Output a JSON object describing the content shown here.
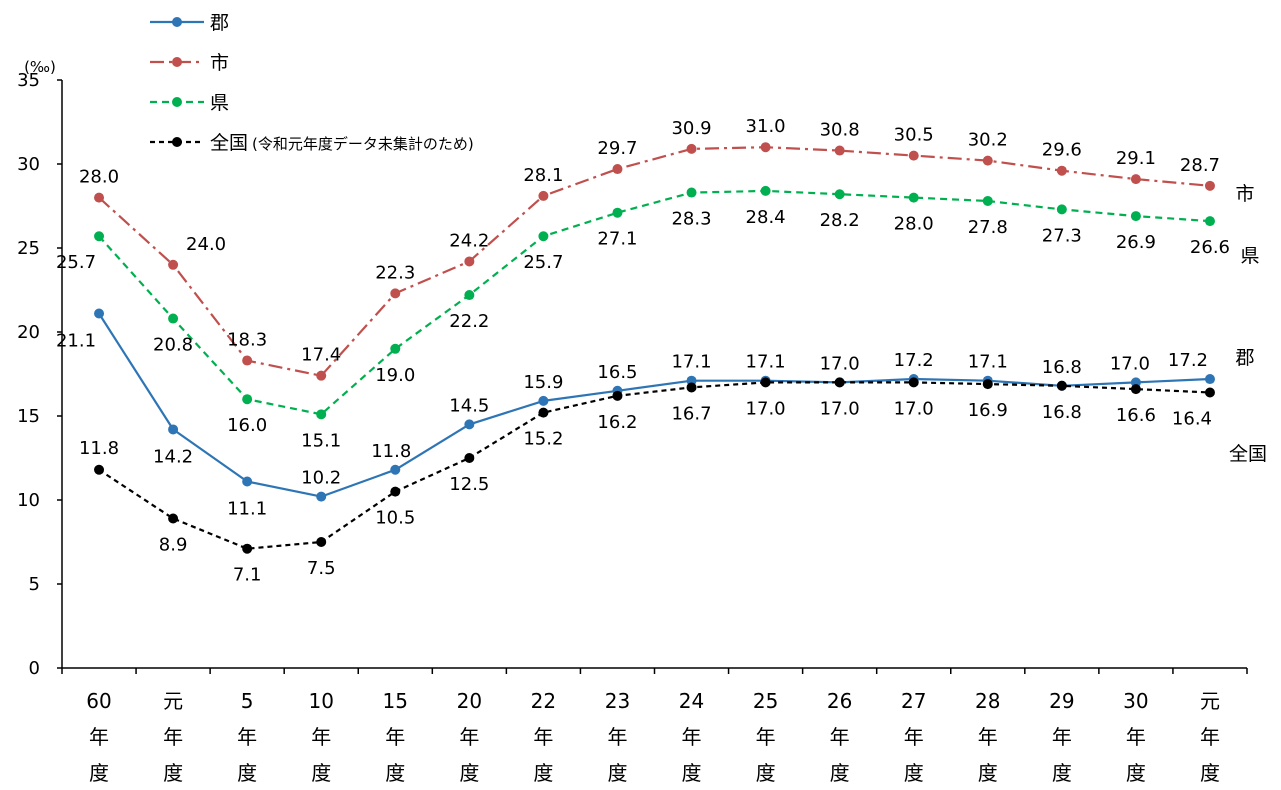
{
  "chart_data": {
    "type": "line",
    "unit": "(‰)",
    "ylim": [
      0,
      35
    ],
    "yticks": [
      0,
      5,
      10,
      15,
      20,
      25,
      30,
      35
    ],
    "grid": false,
    "legend_position": "top-left",
    "categories": [
      [
        "60",
        "年",
        "度"
      ],
      [
        "元",
        "年",
        "度"
      ],
      [
        "5",
        "年",
        "度"
      ],
      [
        "10",
        "年",
        "度"
      ],
      [
        "15",
        "年",
        "度"
      ],
      [
        "20",
        "年",
        "度"
      ],
      [
        "22",
        "年",
        "度"
      ],
      [
        "23",
        "年",
        "度"
      ],
      [
        "24",
        "年",
        "度"
      ],
      [
        "25",
        "年",
        "度"
      ],
      [
        "26",
        "年",
        "度"
      ],
      [
        "27",
        "年",
        "度"
      ],
      [
        "28",
        "年",
        "度"
      ],
      [
        "29",
        "年",
        "度"
      ],
      [
        "30",
        "年",
        "度"
      ],
      [
        "元",
        "年",
        "度"
      ]
    ],
    "series": [
      {
        "name": "郡",
        "end_label": "郡",
        "color": "#2e75b6",
        "dash": "solid",
        "values": [
          21.1,
          14.2,
          11.1,
          10.2,
          11.8,
          14.5,
          15.9,
          16.5,
          17.1,
          17.1,
          17.0,
          17.2,
          17.1,
          16.8,
          17.0,
          17.2
        ]
      },
      {
        "name": "市",
        "end_label": "市",
        "color": "#c0504d",
        "dash": "dashdot",
        "values": [
          28.0,
          24.0,
          18.3,
          17.4,
          22.3,
          24.2,
          28.1,
          29.7,
          30.9,
          31.0,
          30.8,
          30.5,
          30.2,
          29.6,
          29.1,
          28.7
        ]
      },
      {
        "name": "県",
        "end_label": "県",
        "color": "#00b050",
        "dash": "dashed",
        "values": [
          25.7,
          20.8,
          16.0,
          15.1,
          19.0,
          22.2,
          25.7,
          27.1,
          28.3,
          28.4,
          28.2,
          28.0,
          27.8,
          27.3,
          26.9,
          26.6
        ]
      },
      {
        "name": "全国",
        "end_label": "全国",
        "legend_note": "(令和元年度データ未集計のため)",
        "color": "#000000",
        "dash": "shortdash",
        "values": [
          11.8,
          8.9,
          7.1,
          7.5,
          10.5,
          12.5,
          15.2,
          16.2,
          16.7,
          17.0,
          17.0,
          17.0,
          16.9,
          16.8,
          16.6,
          16.4
        ]
      }
    ]
  }
}
